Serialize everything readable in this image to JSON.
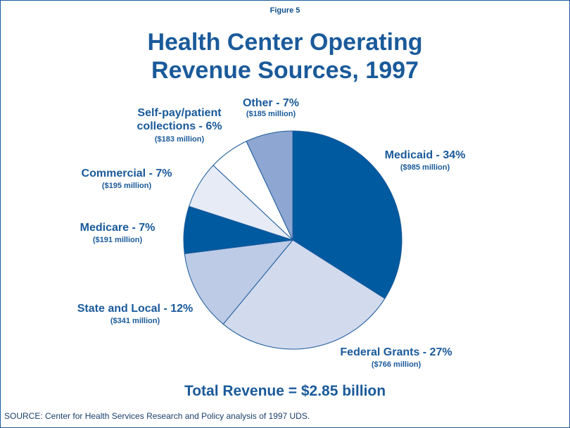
{
  "figure_label": "Figure 5",
  "chart_data": {
    "type": "pie",
    "title": "Health Center Operating Revenue Sources, 1997",
    "categories": [
      "Medicaid - 34%",
      "Federal Grants - 27%",
      "State and Local - 12%",
      "Medicare - 7%",
      "Commercial - 7%",
      "Self-pay/patient collections - 6%",
      "Other - 7%"
    ],
    "values": [
      34,
      27,
      12,
      7,
      7,
      6,
      7
    ],
    "sublabels": [
      "($985 million)",
      "($766 million)",
      "($341 million)",
      "($191 million)",
      "($195 million)",
      "($183 million)",
      "($185 million)"
    ],
    "colors": [
      "#005aa0",
      "#d2daee",
      "#bdcbe7",
      "#005aa0",
      "#e6ebf6",
      "#ffffff",
      "#8ea6d2"
    ],
    "total": "Total Revenue = $2.85 billion"
  },
  "source": "SOURCE: Center for Health Services Research and Policy analysis of 1997 UDS."
}
